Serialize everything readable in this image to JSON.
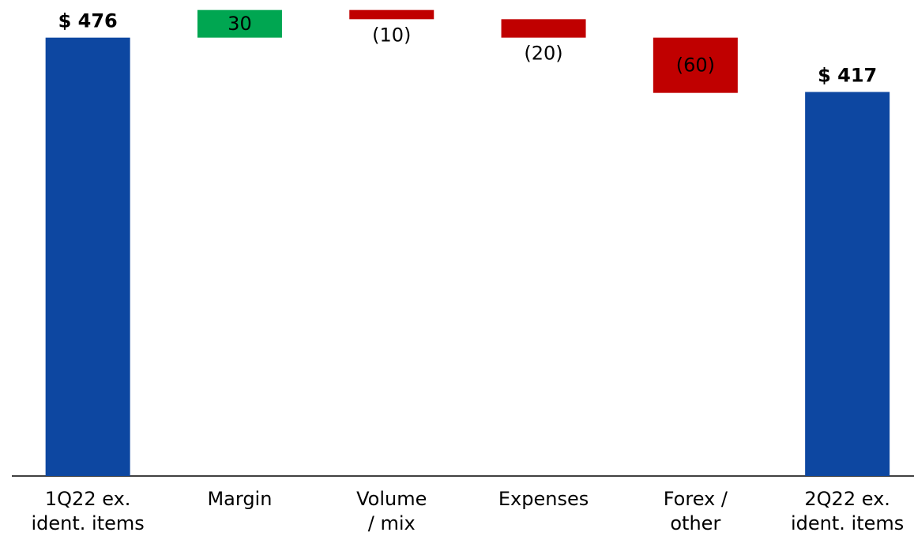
{
  "chart_data": {
    "type": "waterfall",
    "categories": [
      [
        "1Q22 ex.",
        "ident. items"
      ],
      [
        "Margin"
      ],
      [
        "Volume",
        "/ mix"
      ],
      [
        "Expenses"
      ],
      [
        "Forex /",
        "other"
      ],
      [
        "2Q22 ex.",
        "ident. items"
      ]
    ],
    "measure": [
      "total",
      "relative",
      "relative",
      "relative",
      "relative",
      "total"
    ],
    "values": [
      476,
      30,
      -10,
      -20,
      -60,
      417
    ],
    "value_labels": [
      "$ 476",
      "30",
      "(10)",
      "(20)",
      "(60)",
      "$ 417"
    ],
    "colors": {
      "total": "#0d47a1",
      "increase": "#00a651",
      "decrease": "#c00000"
    },
    "ylim": [
      0,
      510
    ]
  }
}
